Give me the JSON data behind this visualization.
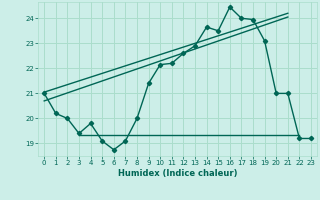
{
  "bg_color": "#cceee8",
  "grid_color": "#aaddcc",
  "line_color": "#006655",
  "xlabel": "Humidex (Indice chaleur)",
  "xlim": [
    -0.5,
    23.5
  ],
  "ylim": [
    18.5,
    24.65
  ],
  "yticks": [
    19,
    20,
    21,
    22,
    23,
    24
  ],
  "xticks": [
    0,
    1,
    2,
    3,
    4,
    5,
    6,
    7,
    8,
    9,
    10,
    11,
    12,
    13,
    14,
    15,
    16,
    17,
    18,
    19,
    20,
    21,
    22,
    23
  ],
  "line1_x": [
    0,
    1,
    2,
    3,
    4,
    5,
    6,
    7,
    8,
    9,
    10,
    11,
    12,
    13,
    14,
    15,
    16,
    17,
    18,
    19,
    20,
    21,
    22,
    23
  ],
  "line1_y": [
    21.0,
    20.2,
    20.0,
    19.4,
    19.8,
    19.1,
    18.75,
    19.1,
    20.0,
    21.4,
    22.15,
    22.2,
    22.6,
    22.9,
    23.65,
    23.5,
    24.45,
    24.0,
    23.95,
    23.1,
    21.0,
    21.0,
    19.2,
    19.2
  ],
  "line2_x": [
    0,
    21
  ],
  "line2_y": [
    20.7,
    24.05
  ],
  "line3_x": [
    3,
    22
  ],
  "line3_y": [
    19.35,
    19.35
  ],
  "line4_x": [
    0,
    21
  ],
  "line4_y": [
    21.05,
    24.2
  ]
}
